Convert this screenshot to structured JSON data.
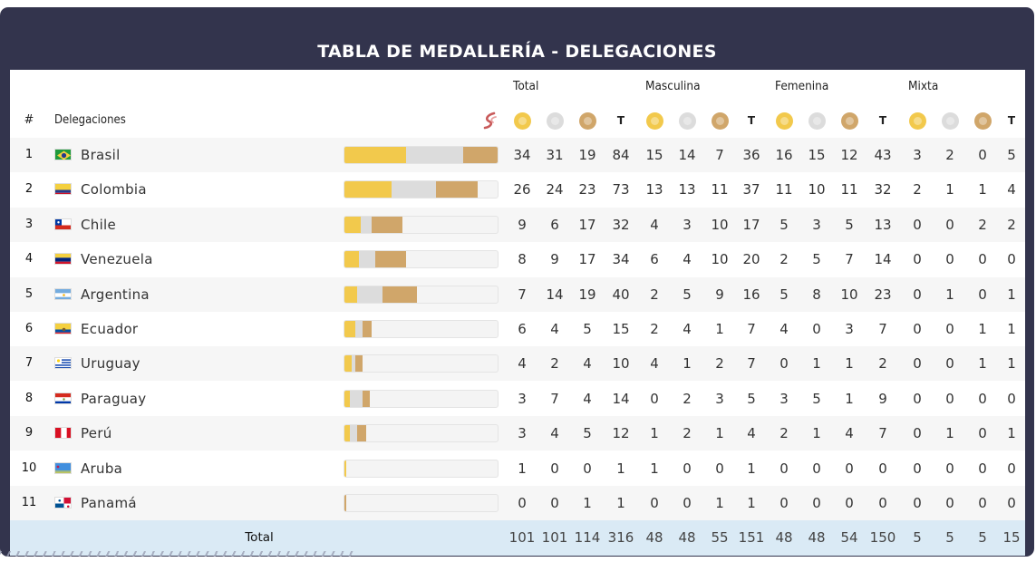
{
  "title": "TABLA DE MEDALLERÍA - DELEGACIONES",
  "groups": [
    "Total",
    "Masculina",
    "Femenina",
    "Mixta"
  ],
  "headers": {
    "rank": "#",
    "delegation": "Delegaciones",
    "total_short": "T"
  },
  "icons": {
    "gold": "gold-medal-icon",
    "silver": "silver-medal-icon",
    "bronze": "bronze-medal-icon",
    "sport": "sport-logo-icon"
  },
  "colors": {
    "frame": "#33344d",
    "gold": "#f2c94c",
    "silver": "#dcdcdc",
    "bronze": "#d0a66a",
    "total_row": "#daeaf5"
  },
  "rows": [
    {
      "rank": "1",
      "name": "Brasil",
      "flag": "brazil-flag-icon",
      "medals": [
        "34",
        "31",
        "19",
        "84",
        "15",
        "14",
        "7",
        "36",
        "16",
        "15",
        "12",
        "43",
        "3",
        "2",
        "0",
        "5"
      ]
    },
    {
      "rank": "2",
      "name": "Colombia",
      "flag": "colombia-flag-icon",
      "medals": [
        "26",
        "24",
        "23",
        "73",
        "13",
        "13",
        "11",
        "37",
        "11",
        "10",
        "11",
        "32",
        "2",
        "1",
        "1",
        "4"
      ]
    },
    {
      "rank": "3",
      "name": "Chile",
      "flag": "chile-flag-icon",
      "medals": [
        "9",
        "6",
        "17",
        "32",
        "4",
        "3",
        "10",
        "17",
        "5",
        "3",
        "5",
        "13",
        "0",
        "0",
        "2",
        "2"
      ]
    },
    {
      "rank": "4",
      "name": "Venezuela",
      "flag": "venezuela-flag-icon",
      "medals": [
        "8",
        "9",
        "17",
        "34",
        "6",
        "4",
        "10",
        "20",
        "2",
        "5",
        "7",
        "14",
        "0",
        "0",
        "0",
        "0"
      ]
    },
    {
      "rank": "5",
      "name": "Argentina",
      "flag": "argentina-flag-icon",
      "medals": [
        "7",
        "14",
        "19",
        "40",
        "2",
        "5",
        "9",
        "16",
        "5",
        "8",
        "10",
        "23",
        "0",
        "1",
        "0",
        "1"
      ]
    },
    {
      "rank": "6",
      "name": "Ecuador",
      "flag": "ecuador-flag-icon",
      "medals": [
        "6",
        "4",
        "5",
        "15",
        "2",
        "4",
        "1",
        "7",
        "4",
        "0",
        "3",
        "7",
        "0",
        "0",
        "1",
        "1"
      ]
    },
    {
      "rank": "7",
      "name": "Uruguay",
      "flag": "uruguay-flag-icon",
      "medals": [
        "4",
        "2",
        "4",
        "10",
        "4",
        "1",
        "2",
        "7",
        "0",
        "1",
        "1",
        "2",
        "0",
        "0",
        "1",
        "1"
      ]
    },
    {
      "rank": "8",
      "name": "Paraguay",
      "flag": "paraguay-flag-icon",
      "medals": [
        "3",
        "7",
        "4",
        "14",
        "0",
        "2",
        "3",
        "5",
        "3",
        "5",
        "1",
        "9",
        "0",
        "0",
        "0",
        "0"
      ]
    },
    {
      "rank": "9",
      "name": "Perú",
      "flag": "peru-flag-icon",
      "medals": [
        "3",
        "4",
        "5",
        "12",
        "1",
        "2",
        "1",
        "4",
        "2",
        "1",
        "4",
        "7",
        "0",
        "1",
        "0",
        "1"
      ]
    },
    {
      "rank": "10",
      "name": "Aruba",
      "flag": "aruba-flag-icon",
      "medals": [
        "1",
        "0",
        "0",
        "1",
        "1",
        "0",
        "0",
        "1",
        "0",
        "0",
        "0",
        "0",
        "0",
        "0",
        "0",
        "0"
      ]
    },
    {
      "rank": "11",
      "name": "Panamá",
      "flag": "panama-flag-icon",
      "medals": [
        "0",
        "0",
        "1",
        "1",
        "0",
        "0",
        "1",
        "1",
        "0",
        "0",
        "0",
        "0",
        "0",
        "0",
        "0",
        "0"
      ]
    }
  ],
  "total": {
    "label": "Total",
    "medals": [
      "101",
      "101",
      "114",
      "316",
      "48",
      "48",
      "55",
      "151",
      "48",
      "48",
      "54",
      "150",
      "5",
      "5",
      "5",
      "15"
    ]
  }
}
